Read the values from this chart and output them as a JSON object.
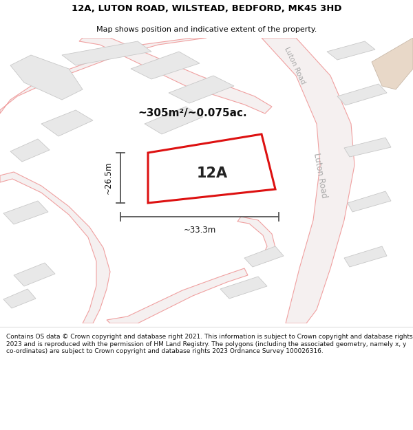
{
  "title": "12A, LUTON ROAD, WILSTEAD, BEDFORD, MK45 3HD",
  "subtitle": "Map shows position and indicative extent of the property.",
  "footer": "Contains OS data © Crown copyright and database right 2021. This information is subject to Crown copyright and database rights 2023 and is reproduced with the permission of HM Land Registry. The polygons (including the associated geometry, namely x, y co-ordinates) are subject to Crown copyright and database rights 2023 Ordnance Survey 100026316.",
  "map_bg": "#ffffff",
  "building_color": "#e8e8e8",
  "building_edge": "#c8c8c8",
  "road_line_color": "#f0a0a0",
  "road_fill_color": "#f8f0f0",
  "road_edge_color": "#e08080",
  "highlight_color": "#dd1111",
  "highlight_fill": "#ffffff",
  "area_text": "~305m²/~0.075ac.",
  "label_12A": "12A",
  "dim_width": "~33.3m",
  "dim_height": "~26.5m",
  "road_label_top": "Luton Road",
  "road_label_right": "Luton Road",
  "dim_color": "#555555"
}
